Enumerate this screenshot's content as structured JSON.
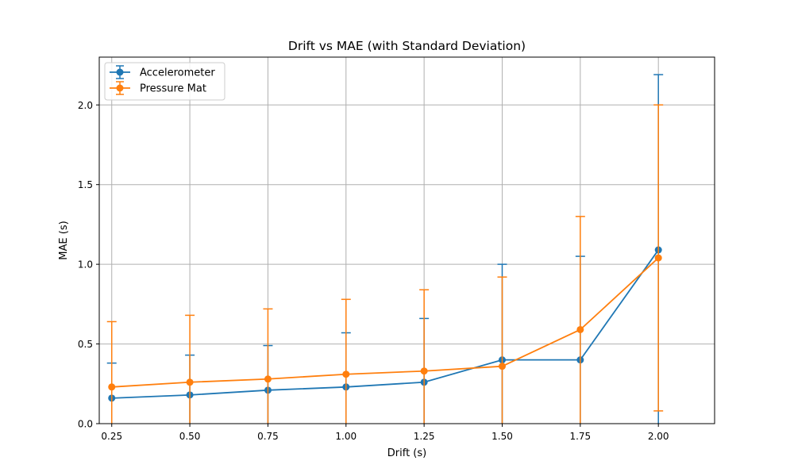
{
  "chart_data": {
    "type": "line",
    "title": "Drift vs MAE (with Standard Deviation)",
    "xlabel": "Drift (s)",
    "ylabel": "MAE (s)",
    "x": [
      0.25,
      0.5,
      0.75,
      1.0,
      1.25,
      1.5,
      1.75,
      2.0
    ],
    "x_tick_labels": [
      "0.25",
      "0.50",
      "0.75",
      "1.00",
      "1.25",
      "1.50",
      "1.75",
      "2.00"
    ],
    "xlim": [
      0.21,
      2.18
    ],
    "ylim": [
      0,
      2.3
    ],
    "y_ticks": [
      0.0,
      0.5,
      1.0,
      1.5,
      2.0
    ],
    "y_tick_labels": [
      "0.0",
      "0.5",
      "1.0",
      "1.5",
      "2.0"
    ],
    "grid": true,
    "legend_position": "top-left",
    "series": [
      {
        "name": "Accelerometer",
        "color": "#1f77b4",
        "values": [
          0.16,
          0.18,
          0.21,
          0.23,
          0.26,
          0.4,
          0.4,
          1.09
        ],
        "std": [
          0.22,
          0.25,
          0.28,
          0.34,
          0.4,
          0.6,
          0.65,
          1.1
        ]
      },
      {
        "name": "Pressure Mat",
        "color": "#ff7f0e",
        "values": [
          0.23,
          0.26,
          0.28,
          0.31,
          0.33,
          0.36,
          0.59,
          1.04
        ],
        "std": [
          0.41,
          0.42,
          0.44,
          0.47,
          0.51,
          0.56,
          0.71,
          0.96
        ]
      }
    ]
  }
}
